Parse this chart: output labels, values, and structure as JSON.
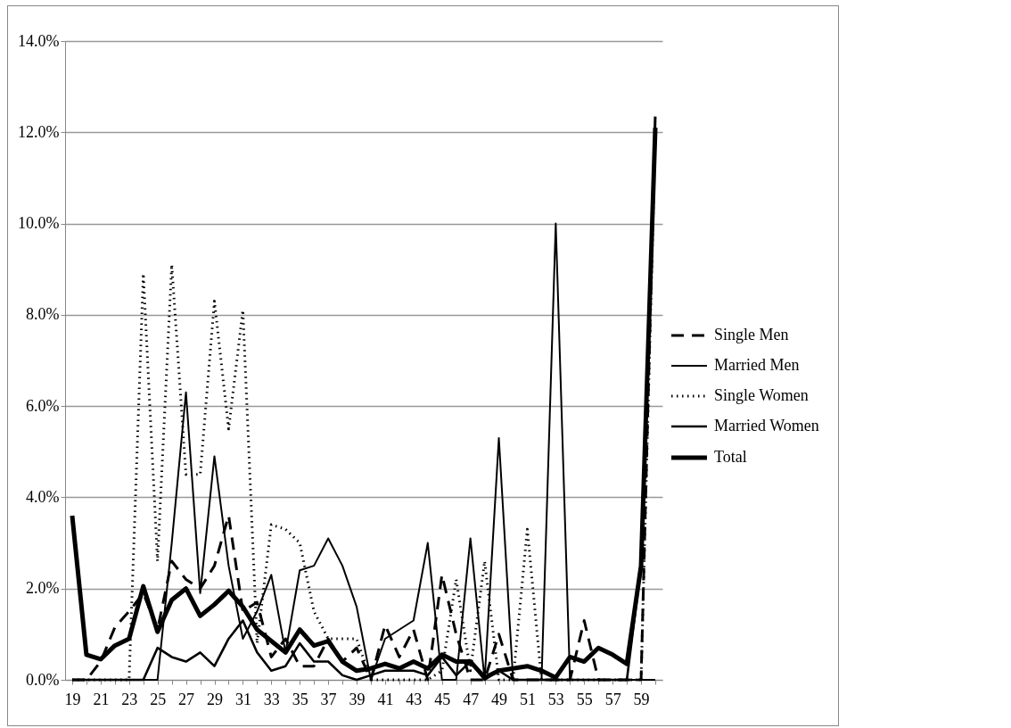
{
  "chart_data": {
    "type": "line",
    "categories": [
      "19",
      null,
      "21",
      null,
      "23",
      null,
      "25",
      null,
      "27",
      null,
      "29",
      null,
      "31",
      null,
      "33",
      null,
      "35",
      null,
      "37",
      null,
      "39",
      null,
      "41",
      null,
      "43",
      null,
      "45",
      null,
      "47",
      null,
      "49",
      null,
      "51",
      null,
      "53",
      null,
      "55",
      null,
      "57",
      null,
      "59",
      null
    ],
    "ylim": [
      0,
      14
    ],
    "yticks": [
      {
        "value": 0,
        "label": "0.0%"
      },
      {
        "value": 2,
        "label": "2.0%"
      },
      {
        "value": 4,
        "label": "4.0%"
      },
      {
        "value": 6,
        "label": "6.0%"
      },
      {
        "value": 8,
        "label": "8.0%"
      },
      {
        "value": 10,
        "label": "10.0%"
      },
      {
        "value": 12,
        "label": "12.0%"
      },
      {
        "value": 14,
        "label": "14.0%"
      }
    ],
    "grid": "y",
    "legend": "right",
    "marker": "none",
    "series": [
      {
        "name": "Single Men",
        "color": "#000000",
        "line_style": "dashed",
        "values": [
          0,
          0,
          0.4,
          1.15,
          1.5,
          1.9,
          1.1,
          2.6,
          2.2,
          2.0,
          2.5,
          3.6,
          1.5,
          1.7,
          0.5,
          0.9,
          0.3,
          0.3,
          0.9,
          0.4,
          0.7,
          0,
          1.2,
          0.5,
          1.1,
          0,
          2.3,
          1.0,
          0,
          0,
          1.0,
          0,
          0,
          0,
          0,
          0,
          1.3,
          0,
          0,
          0,
          0,
          12.4
        ]
      },
      {
        "name": "Married Men",
        "color": "#000000",
        "line_style": "solid",
        "values": [
          0,
          0,
          0,
          0,
          0,
          0,
          0,
          3.0,
          6.3,
          1.9,
          4.9,
          2.5,
          0.9,
          1.5,
          2.3,
          0.6,
          2.4,
          2.5,
          3.1,
          2.5,
          1.6,
          0,
          0.9,
          1.1,
          1.3,
          3.0,
          0,
          0,
          3.1,
          0,
          5.3,
          0,
          0,
          0,
          10.0,
          0,
          0,
          0,
          0,
          0,
          0,
          0
        ]
      },
      {
        "name": "Single Women",
        "color": "#000000",
        "line_style": "dotted",
        "values": [
          0,
          0,
          0,
          0,
          0,
          8.9,
          2.6,
          9.1,
          4.5,
          4.5,
          8.3,
          5.5,
          8.1,
          0.8,
          3.4,
          3.3,
          3.0,
          1.5,
          0.9,
          0.9,
          0.9,
          0,
          0,
          0,
          0,
          0,
          0.2,
          2.2,
          0.2,
          2.6,
          0,
          0,
          3.3,
          0,
          0,
          0,
          0,
          0,
          0,
          0,
          0,
          12.0
        ]
      },
      {
        "name": "Married Women",
        "color": "#000000",
        "line_style": "solid",
        "values": [
          0,
          0,
          0,
          0,
          0,
          0,
          0.7,
          0.5,
          0.4,
          0.6,
          0.3,
          0.9,
          1.3,
          0.6,
          0.2,
          0.3,
          0.8,
          0.4,
          0.4,
          0.1,
          0,
          0.1,
          0.2,
          0.2,
          0.2,
          0.1,
          0.5,
          0.1,
          0.4,
          0,
          0.2,
          0,
          0,
          0,
          0,
          0,
          0,
          0,
          0,
          0,
          2.5,
          12.1
        ]
      },
      {
        "name": "Total",
        "color": "#000000",
        "line_style": "solid",
        "values": [
          3.6,
          0.55,
          0.45,
          0.75,
          0.9,
          2.05,
          1.05,
          1.75,
          2.0,
          1.4,
          1.65,
          1.95,
          1.6,
          1.1,
          0.85,
          0.6,
          1.1,
          0.75,
          0.85,
          0.4,
          0.2,
          0.25,
          0.35,
          0.25,
          0.4,
          0.25,
          0.55,
          0.4,
          0.4,
          0.05,
          0.2,
          0.25,
          0.3,
          0.2,
          0.05,
          0.5,
          0.4,
          0.7,
          0.55,
          0.35,
          2.5,
          12.1
        ]
      }
    ]
  }
}
